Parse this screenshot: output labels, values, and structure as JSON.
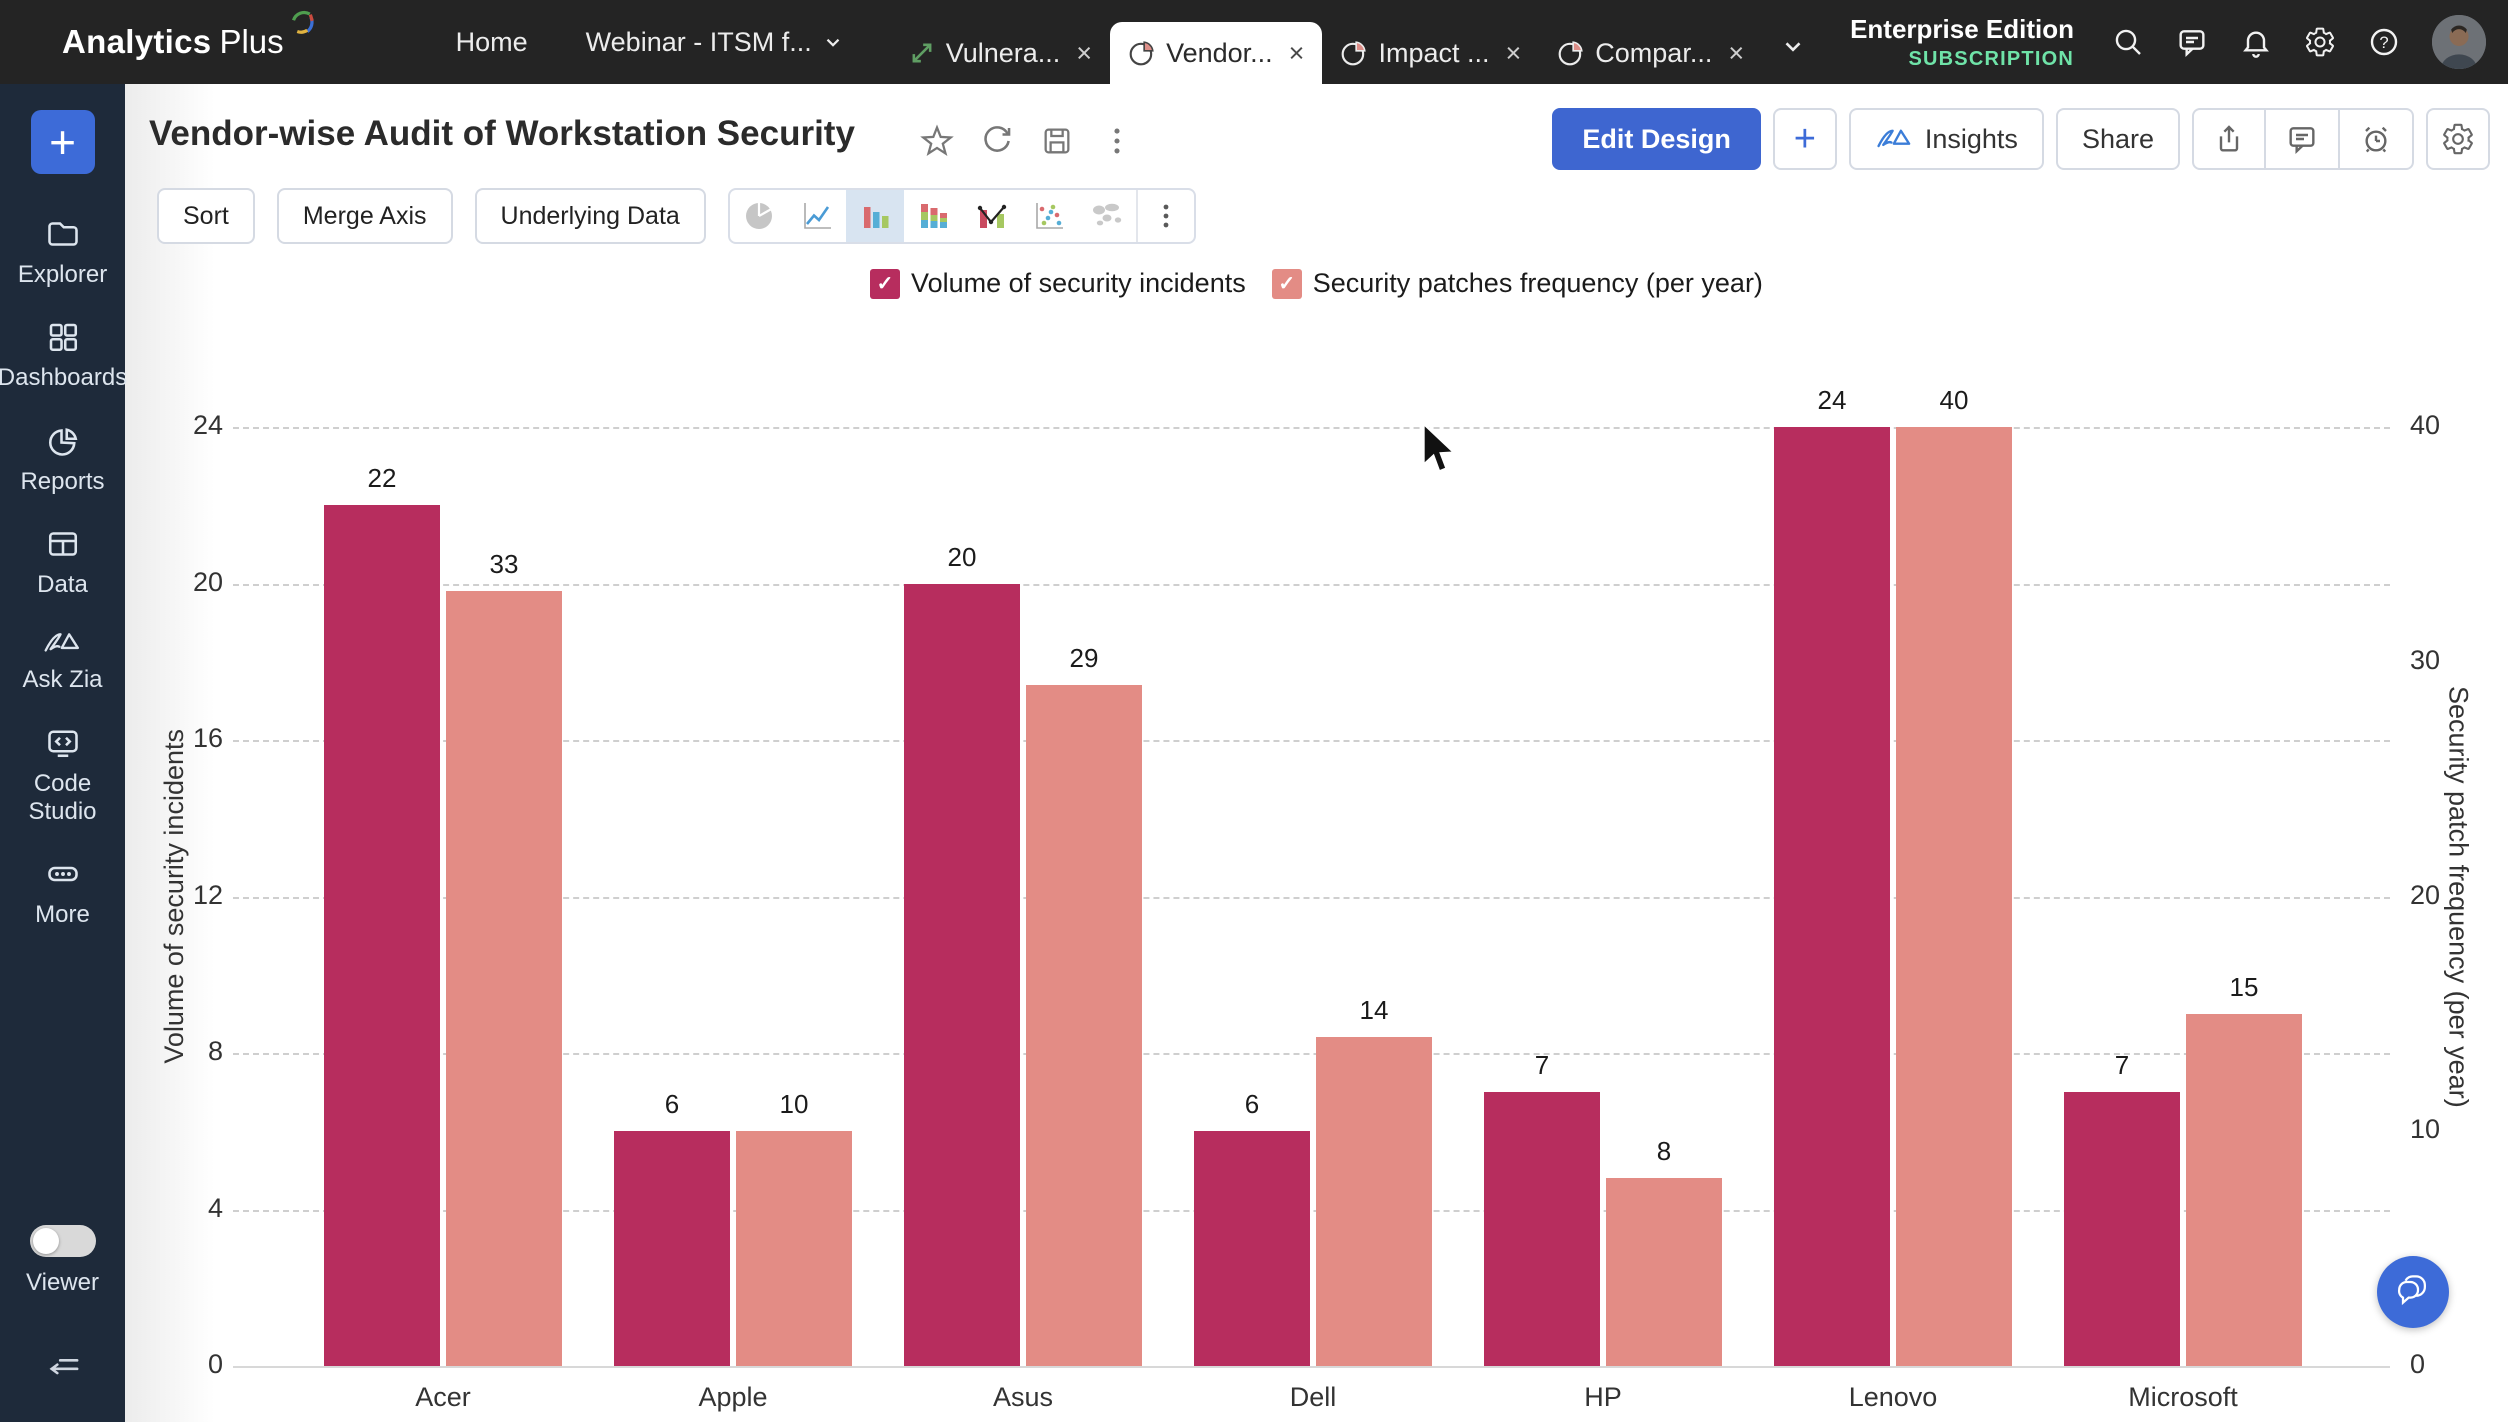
{
  "topbar": {
    "logo": {
      "primary": "Analytics",
      "secondary": "Plus"
    },
    "home_label": "Home",
    "webinar_tab": {
      "label": "Webinar - ITSM f..."
    },
    "tabs": [
      {
        "label": "Vulnera...",
        "icon": "trend-arrow-icon",
        "active": false
      },
      {
        "label": "Vendor...",
        "icon": "pie-icon",
        "active": true
      },
      {
        "label": "Impact ...",
        "icon": "pie-icon",
        "active": false
      },
      {
        "label": "Compar...",
        "icon": "pie-icon",
        "active": false
      }
    ],
    "edition": "Enterprise Edition",
    "subscription": "SUBSCRIPTION"
  },
  "sidebar": {
    "items": [
      {
        "label": "Explorer",
        "icon": "folder-icon"
      },
      {
        "label": "Dashboards",
        "icon": "grid-icon"
      },
      {
        "label": "Reports",
        "icon": "pie-chart-icon"
      },
      {
        "label": "Data",
        "icon": "table-icon"
      },
      {
        "label": "Ask Zia",
        "icon": "zia-icon"
      },
      {
        "label": "Code Studio",
        "icon": "code-icon"
      },
      {
        "label": "More",
        "icon": "ellipsis-icon"
      }
    ],
    "viewer_label": "Viewer"
  },
  "header": {
    "title": "Vendor-wise Audit of Workstation Security",
    "actions": {
      "edit_design": "Edit Design",
      "add": "+",
      "insights": "Insights",
      "share": "Share"
    }
  },
  "toolbar": {
    "sort": "Sort",
    "merge_axis": "Merge Axis",
    "underlying_data": "Underlying Data",
    "chart_types": [
      "pie",
      "line",
      "bar",
      "stacked-bar",
      "combo",
      "scatter",
      "map"
    ],
    "selected_chart_type": "bar"
  },
  "icons": {
    "close": "×",
    "check": "✓",
    "plus": "+",
    "question": "?"
  },
  "colors": {
    "series1": "#b72d5e",
    "series2": "#e38c85",
    "accent_blue": "#3d6bd8",
    "subscription_green": "#6fe3a8"
  },
  "chart_data": {
    "type": "bar",
    "title": "Vendor-wise Audit of Workstation Security",
    "categories": [
      "Acer",
      "Apple",
      "Asus",
      "Dell",
      "HP",
      "Lenovo",
      "Microsoft"
    ],
    "series": [
      {
        "name": "Volume of security incidents",
        "axis": "left",
        "color": "#b72d5e",
        "values": [
          22,
          6,
          20,
          6,
          7,
          24,
          7
        ]
      },
      {
        "name": "Security patches frequency (per year)",
        "axis": "right",
        "color": "#e38c85",
        "values": [
          33,
          10,
          29,
          14,
          8,
          40,
          15
        ]
      }
    ],
    "left_axis": {
      "label": "Volume of security incidents",
      "ticks": [
        0,
        4,
        8,
        12,
        16,
        20,
        24
      ],
      "max": 24
    },
    "right_axis": {
      "label": "Security patch frequency (per year)",
      "ticks": [
        0,
        10,
        20,
        30,
        40
      ],
      "max": 40
    },
    "grid": "horizontal dashed lines at left-axis ticks",
    "legend_position": "top-center",
    "value_labels": true
  }
}
